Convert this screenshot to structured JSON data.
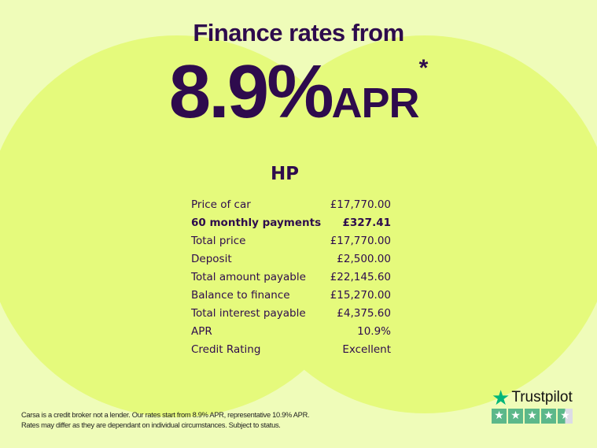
{
  "headline": {
    "title": "Finance rates from",
    "rate": "8.9%",
    "rate_suffix": "APR",
    "asterisk": "*"
  },
  "section_title": "HP",
  "rows": [
    {
      "label": "Price of car",
      "value": "£17,770.00"
    },
    {
      "label": "60 monthly payments",
      "value": "£327.41",
      "bold": true
    },
    {
      "label": "Total price",
      "value": "£17,770.00"
    },
    {
      "label": "Deposit",
      "value": "£2,500.00"
    },
    {
      "label": "Total amount payable",
      "value": "£22,145.60"
    },
    {
      "label": "Balance to finance",
      "value": "£15,270.00"
    },
    {
      "label": "Total interest payable",
      "value": "£4,375.60"
    },
    {
      "label": "APR",
      "value": "10.9%"
    },
    {
      "label": "Credit Rating",
      "value": "Excellent"
    }
  ],
  "disclaimer": {
    "line1": "Carsa is a credit broker not a lender. Our rates start from 8.9% APR, representative 10.9% APR.",
    "line2": "Rates may differ as they are dependant on individual circumstances. Subject to status."
  },
  "trustpilot": {
    "name": "Trustpilot",
    "rating_stars": 4.5,
    "max_stars": 5
  },
  "colors": {
    "background": "#effcb9",
    "circle": "#e5fa7c",
    "text": "#2e0b4d",
    "trustpilot_green": "#00b67a"
  }
}
